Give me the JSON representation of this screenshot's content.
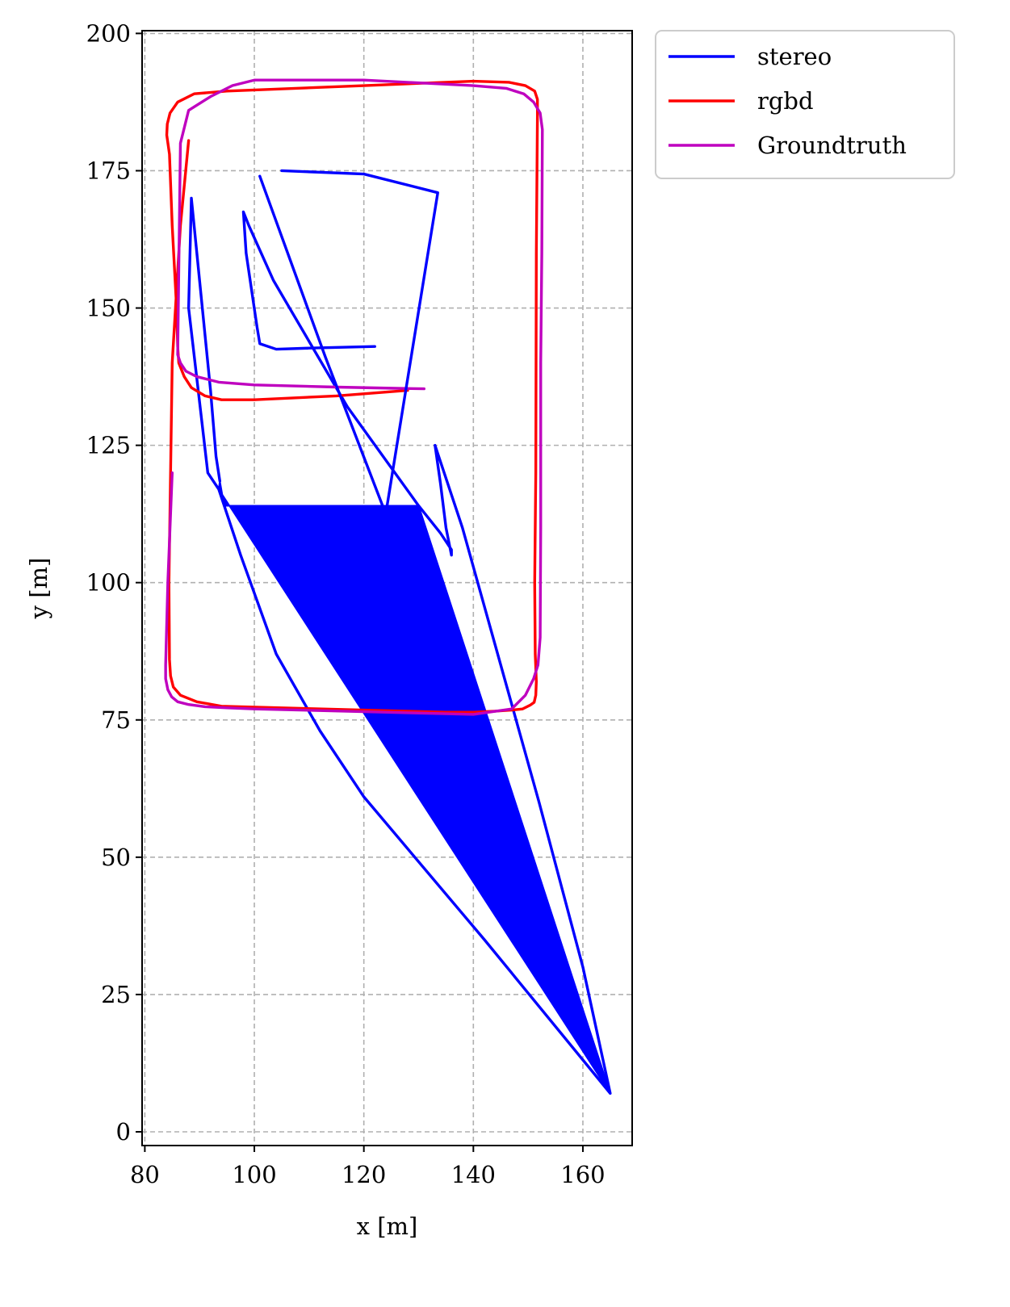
{
  "chart_data": {
    "type": "line",
    "title": "",
    "xlabel": "x [m]",
    "ylabel": "y [m]",
    "xlim": [
      79.5,
      169
    ],
    "ylim": [
      -2.5,
      200.5
    ],
    "xticks": [
      80,
      100,
      120,
      140,
      160
    ],
    "yticks": [
      0,
      25,
      50,
      75,
      100,
      125,
      150,
      175,
      200
    ],
    "grid": true,
    "legend": {
      "position": "outside-top-right"
    },
    "series": [
      {
        "name": "stereo",
        "color": "#0000ff",
        "x": [
          122,
          110,
          104,
          101,
          100.5,
          98.5,
          98,
          99,
          103.5,
          117,
          130,
          134,
          136,
          136,
          135,
          134,
          133,
          138,
          145,
          152,
          160,
          165,
          142,
          120,
          112,
          104,
          97.5,
          94.5,
          93.5,
          91.5,
          88,
          88.5,
          90,
          92,
          93,
          93.7
        ],
        "y": [
          143,
          142.7,
          142.5,
          143.5,
          146.5,
          160,
          167.5,
          165,
          155,
          132,
          114,
          109,
          106,
          105,
          110,
          118,
          125,
          110,
          85,
          60,
          30,
          7,
          35,
          61,
          73,
          87,
          105,
          114,
          117,
          120,
          150,
          170,
          155,
          135,
          123,
          118.5
        ]
      },
      {
        "name": "rgbd",
        "color": "#ff0000",
        "x": [
          128,
          115,
          100,
          94,
          91,
          88.5,
          87.2,
          86.2,
          86,
          85.8,
          85,
          84.5,
          84,
          84.1,
          84.6,
          86,
          89,
          95,
          120,
          140,
          146.5,
          149.5,
          151.2,
          151.7,
          151.7,
          151.5,
          151.4,
          151.2,
          151.3,
          151.5,
          151.4,
          151.1,
          150.4,
          149,
          147,
          144,
          140,
          135,
          120,
          105,
          94,
          89.5,
          86.5,
          85.2,
          84.7,
          84.5,
          84.4,
          85,
          86.5,
          88
        ],
        "y": [
          135,
          134,
          133.3,
          133.3,
          134,
          135.5,
          137.5,
          140,
          143,
          150,
          165,
          178,
          181.5,
          183.5,
          185.5,
          187.5,
          189,
          189.5,
          190.5,
          191.3,
          191.1,
          190.5,
          189.5,
          188,
          185,
          160,
          120,
          100,
          87,
          82,
          79.5,
          78.2,
          77.7,
          77,
          76.8,
          76.6,
          76.4,
          76.4,
          76.8,
          77.2,
          77.5,
          78.3,
          79.5,
          81,
          83,
          86,
          100,
          140,
          165,
          180.5
        ]
      },
      {
        "name": "Groundtruth",
        "color": "#bf00bf",
        "x": [
          131,
          125,
          115,
          100,
          93.5,
          89.5,
          87.5,
          86.5,
          86,
          86.5,
          88,
          92,
          96,
          100,
          120,
          140,
          146,
          149.2,
          151,
          152.2,
          152.6,
          152.5,
          152.3,
          152.3,
          152.2,
          151.8,
          151,
          149.5,
          147,
          140,
          120,
          100,
          95,
          91,
          88,
          86,
          84.9,
          84.2,
          83.8,
          83.8,
          84.2,
          85
        ],
        "y": [
          135.3,
          135.4,
          135.6,
          136,
          136.5,
          137.5,
          138.5,
          140,
          141.5,
          180,
          186,
          188.5,
          190.5,
          191.5,
          191.5,
          190.5,
          190,
          189,
          187.5,
          185.5,
          182.5,
          160,
          140,
          110,
          90,
          85,
          82.5,
          79.5,
          77,
          76,
          76.5,
          77,
          77.2,
          77.4,
          77.8,
          78.3,
          79.2,
          80.5,
          82.5,
          85,
          100,
          120
        ]
      },
      {
        "name": "",
        "color": "#0000ff",
        "x": [
          105,
          120,
          133.5,
          124,
          113,
          101
        ],
        "y": [
          175,
          174.4,
          171,
          112.5,
          141,
          174
        ]
      }
    ]
  }
}
